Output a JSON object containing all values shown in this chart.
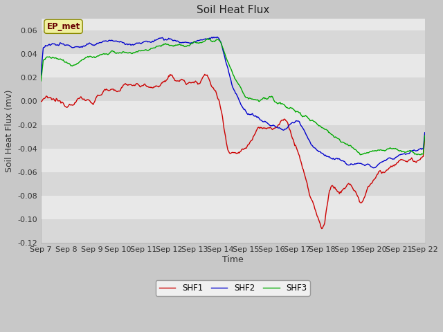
{
  "title": "Soil Heat Flux",
  "ylabel": "Soil Heat Flux (mv)",
  "xlabel": "Time",
  "ylim": [
    -0.12,
    0.07
  ],
  "yticks": [
    -0.12,
    -0.1,
    -0.08,
    -0.06,
    -0.04,
    -0.02,
    0.0,
    0.02,
    0.04,
    0.06
  ],
  "x_tick_labels": [
    "Sep 7",
    "Sep 8",
    "Sep 9",
    "Sep 10",
    "Sep 11",
    "Sep 12",
    "Sep 13",
    "Sep 14",
    "Sep 15",
    "Sep 16",
    "Sep 17",
    "Sep 18",
    "Sep 19",
    "Sep 20",
    "Sep 21",
    "Sep 22"
  ],
  "legend_labels": [
    "SHF1",
    "SHF2",
    "SHF3"
  ],
  "line_colors": [
    "#cc0000",
    "#0000cc",
    "#00aa00"
  ],
  "annotation_text": "EP_met",
  "fig_bg_color": "#c8c8c8",
  "plot_bg_color": "#e8e8e8",
  "title_fontsize": 11,
  "label_fontsize": 9,
  "tick_fontsize": 8
}
